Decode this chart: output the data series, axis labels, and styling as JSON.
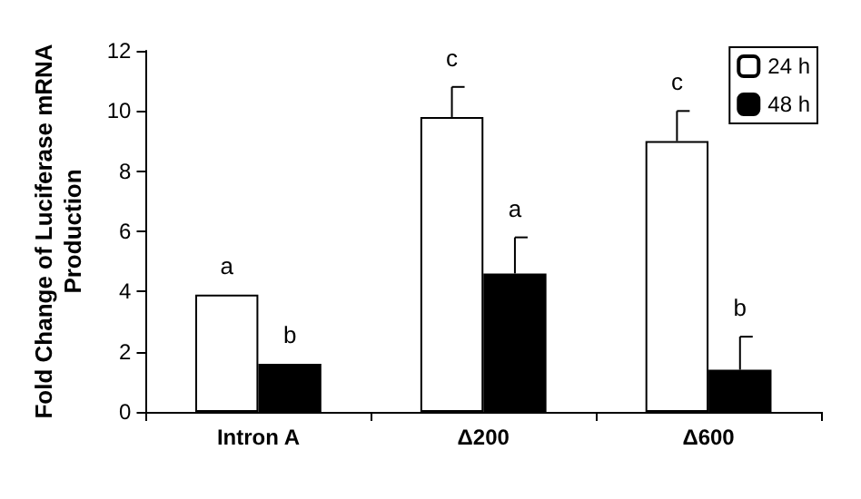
{
  "chart_data": {
    "type": "bar",
    "ylabel": "Fold Change of Luciferase mRNA Production",
    "categories": [
      "Intron A",
      "Δ200",
      "Δ600"
    ],
    "series": [
      {
        "name": "24 h",
        "color": "#ffffff",
        "values": [
          3.9,
          9.8,
          9.0
        ],
        "errors": [
          null,
          [
            9.8,
            10.8
          ],
          [
            9.0,
            10.0
          ]
        ]
      },
      {
        "name": "48 h",
        "color": "#000000",
        "values": [
          1.6,
          4.6,
          1.4
        ],
        "errors": [
          null,
          [
            4.6,
            5.8
          ],
          [
            1.4,
            2.5
          ]
        ]
      }
    ],
    "annotations": [
      {
        "text": "a",
        "x": "Intron A",
        "y": 3.9
      },
      {
        "text": "b",
        "x": "Intron A",
        "y": 1.6
      },
      {
        "text": "c",
        "x": "Δ200",
        "y": 9.8
      },
      {
        "text": "a",
        "x": "Δ200",
        "y": 4.6
      },
      {
        "text": "c",
        "x": "Δ600",
        "y": 9.0
      },
      {
        "text": "b",
        "x": "Δ600",
        "y": 1.4
      }
    ],
    "ylim": [
      0,
      12
    ],
    "yticks": [
      0,
      2,
      4,
      6,
      8,
      10,
      12
    ],
    "grid": false,
    "legend": "top right"
  }
}
